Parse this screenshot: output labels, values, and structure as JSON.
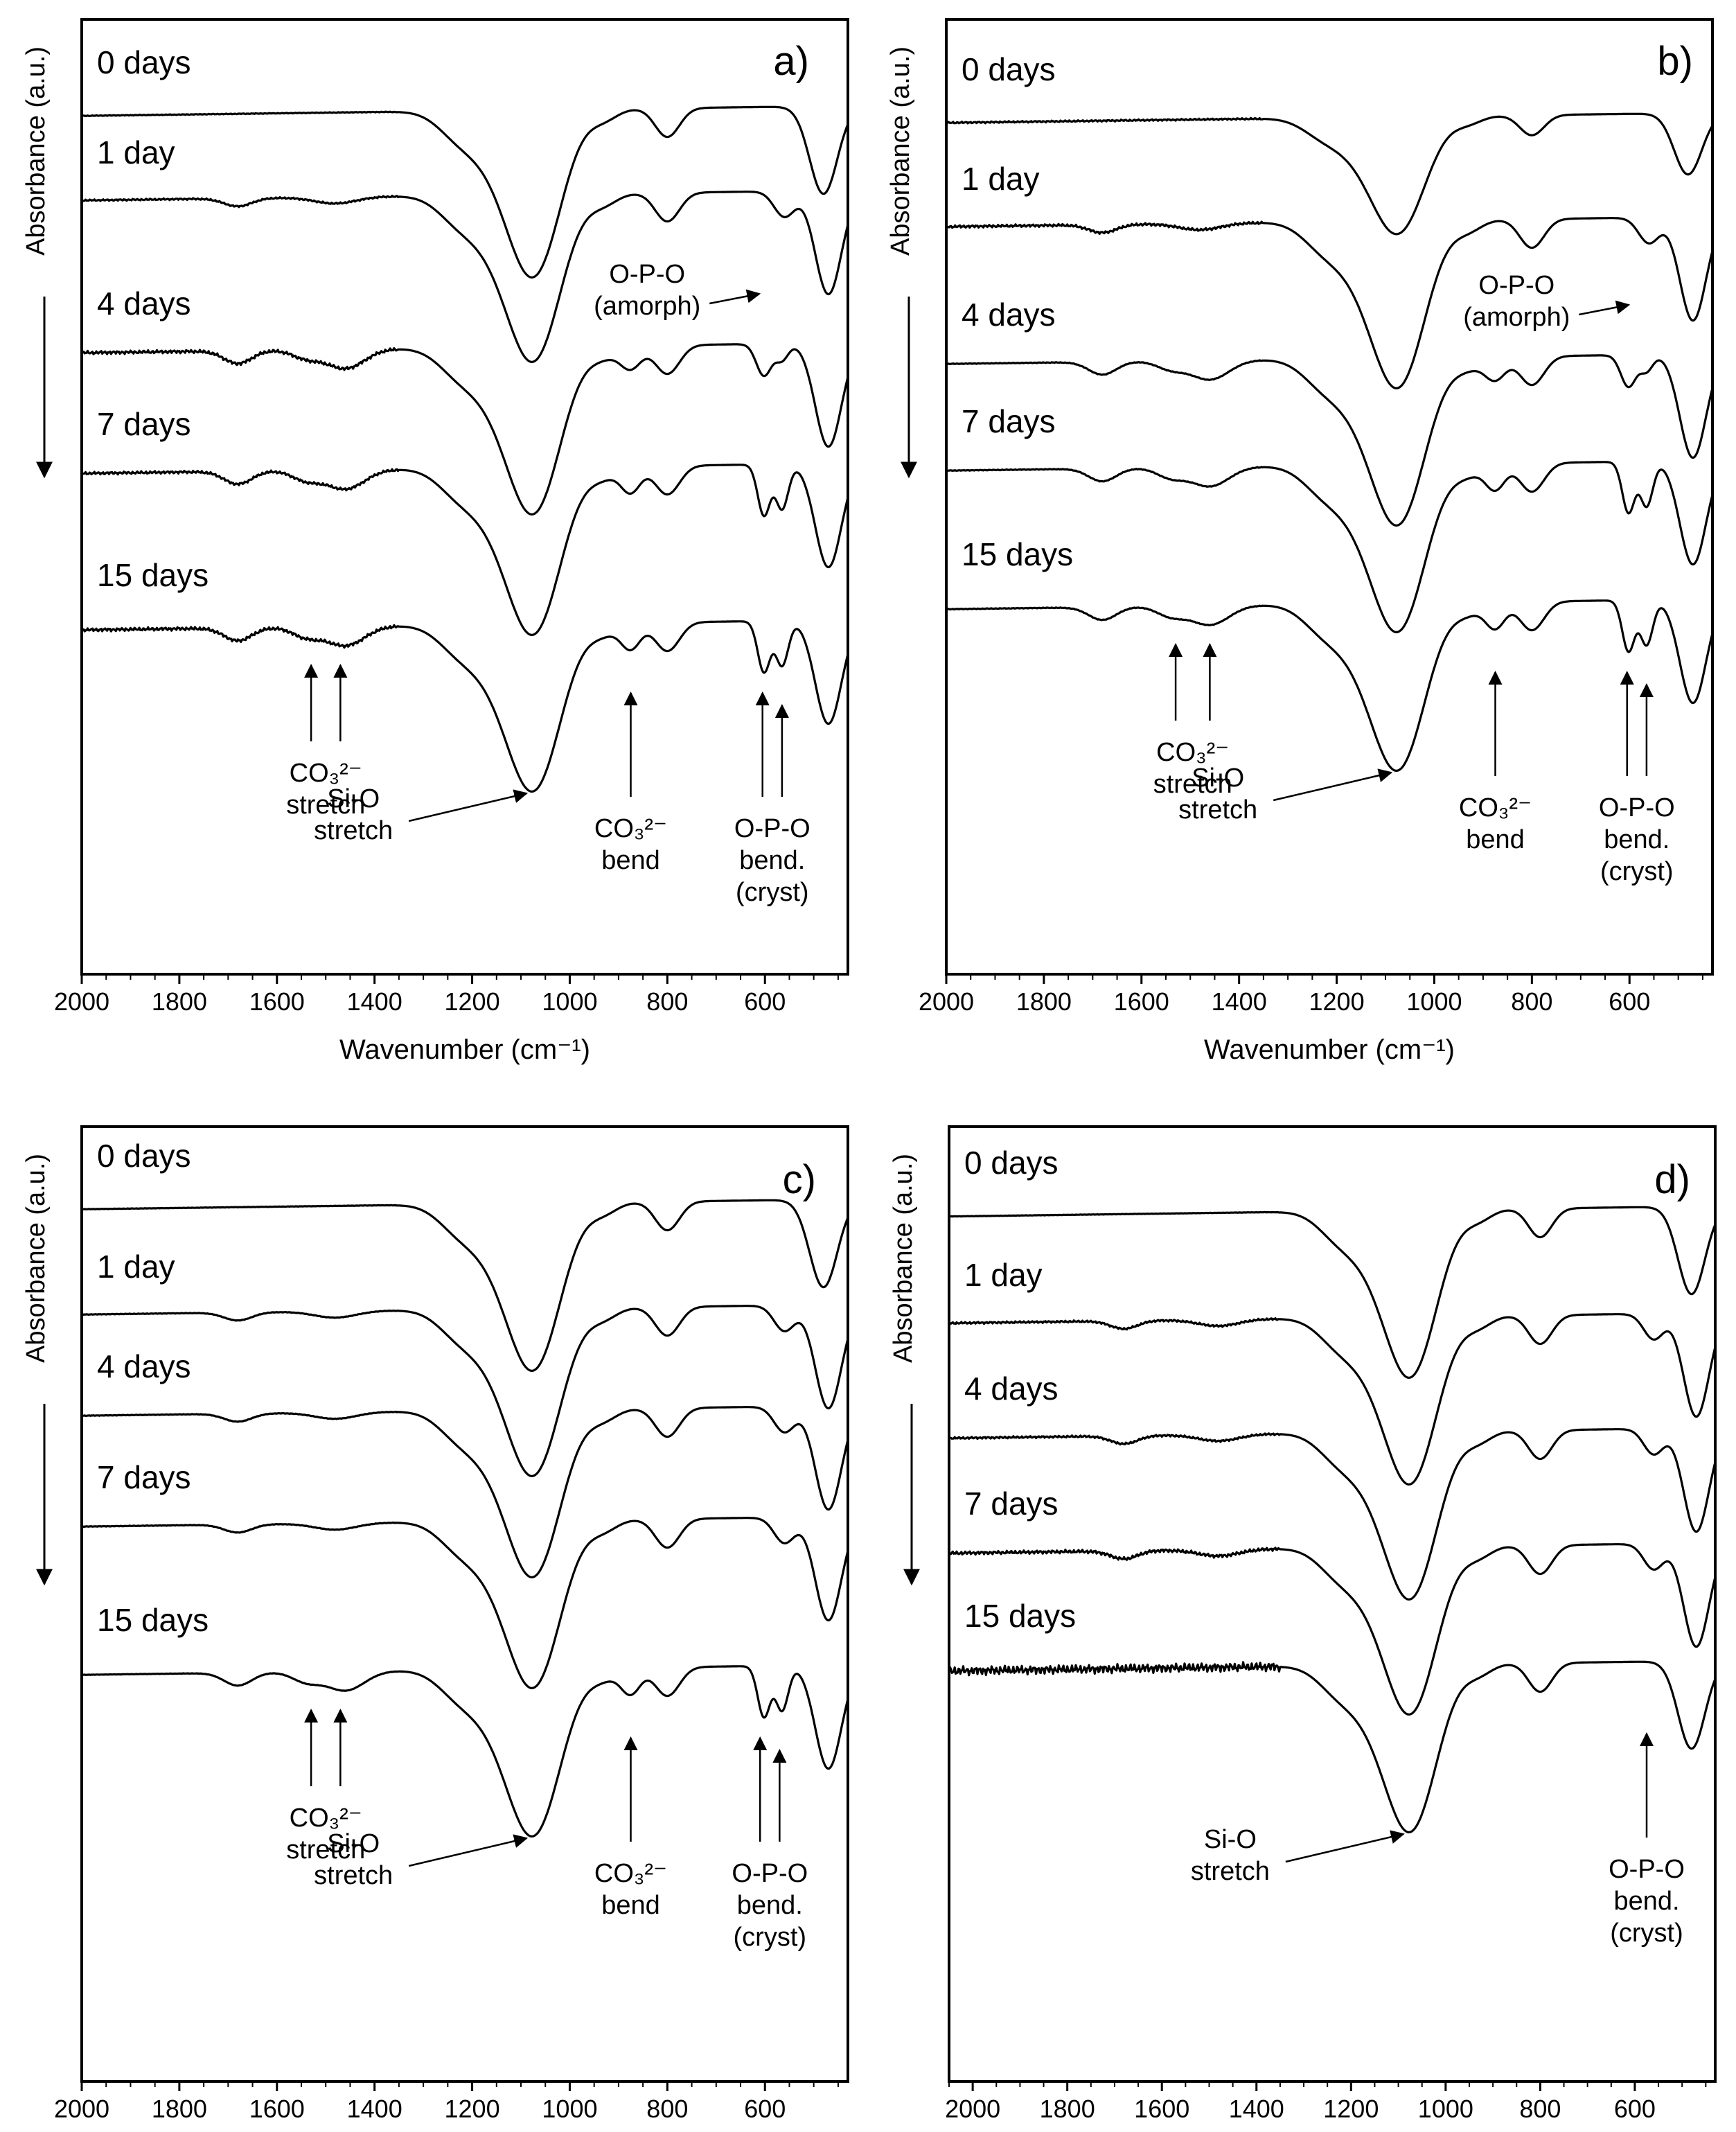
{
  "figure": {
    "y_axis_label": "Absorbance (a.u.)",
    "x_axis_label": "Wavenumber (cm⁻¹)"
  },
  "chart_data": [
    {
      "type": "line",
      "panel": "a)",
      "xlabel": "Wavenumber (cm⁻¹)",
      "ylabel": "Absorbance (a.u.)",
      "xlim": [
        2000,
        430
      ],
      "x_ticks": [
        2000,
        1800,
        1600,
        1400,
        1200,
        1000,
        800,
        600
      ],
      "y_direction_arrow": "down",
      "series": [
        {
          "name": "0 days",
          "profile": "amorphous",
          "noise": 0.2
        },
        {
          "name": "1 day",
          "profile": "early",
          "noise": 0.5
        },
        {
          "name": "4 days",
          "profile": "carbonate",
          "noise": 1.0
        },
        {
          "name": "7 days",
          "profile": "carbonate-cryst",
          "noise": 0.8
        },
        {
          "name": "15 days",
          "profile": "cryst",
          "noise": 1.0
        }
      ],
      "annotations": [
        {
          "id": "opo-amorph",
          "lines": [
            "O-P-O",
            "(amorph)"
          ],
          "x": 600
        },
        {
          "id": "co3-stretch",
          "lines": [
            "CO₃²⁻",
            "stretch"
          ],
          "x": [
            1530,
            1470
          ]
        },
        {
          "id": "co3-bend",
          "lines": [
            "CO₃²⁻",
            "bend"
          ],
          "x": 875
        },
        {
          "id": "sio-stretch",
          "lines": [
            "Si-O",
            "stretch"
          ],
          "x": 1060
        },
        {
          "id": "opo-cryst",
          "lines": [
            "O-P-O",
            "bend.",
            "(cryst)"
          ],
          "x": [
            605,
            565
          ]
        }
      ]
    },
    {
      "type": "line",
      "panel": "b)",
      "xlabel": "Wavenumber (cm⁻¹)",
      "ylabel": "Absorbance (a.u.)",
      "xlim": [
        2000,
        430
      ],
      "x_ticks": [
        2000,
        1800,
        1600,
        1400,
        1200,
        1000,
        800,
        600
      ],
      "y_direction_arrow": "down",
      "series": [
        {
          "name": "0 days",
          "profile": "flat",
          "noise": 0.5
        },
        {
          "name": "1 day",
          "profile": "early",
          "noise": 0.8
        },
        {
          "name": "4 days",
          "profile": "carbonate",
          "noise": 0.2
        },
        {
          "name": "7 days",
          "profile": "carbonate-cryst",
          "noise": 0.2
        },
        {
          "name": "15 days",
          "profile": "cryst",
          "noise": 0.2
        }
      ],
      "annotations": [
        {
          "id": "opo-amorph",
          "lines": [
            "O-P-O",
            "(amorph)"
          ],
          "x": 590
        },
        {
          "id": "co3-stretch",
          "lines": [
            "CO₃²⁻",
            "stretch"
          ],
          "x": [
            1530,
            1460
          ]
        },
        {
          "id": "co3-bend",
          "lines": [
            "CO₃²⁻",
            "bend"
          ],
          "x": 875
        },
        {
          "id": "sio-stretch",
          "lines": [
            "Si-O",
            "stretch"
          ],
          "x": 1060
        },
        {
          "id": "opo-cryst",
          "lines": [
            "O-P-O",
            "bend.",
            "(cryst)"
          ],
          "x": [
            605,
            565
          ]
        }
      ]
    },
    {
      "type": "line",
      "panel": "c)",
      "xlabel": "Wavenumber (cm⁻¹)",
      "ylabel": "Absorbance (a.u.)",
      "xlim": [
        2000,
        430
      ],
      "x_ticks": [
        2000,
        1800,
        1600,
        1400,
        1200,
        1000,
        800,
        600
      ],
      "y_direction_arrow": "down",
      "series": [
        {
          "name": "0 days",
          "profile": "amorphous",
          "noise": 0.1
        },
        {
          "name": "1 day",
          "profile": "early",
          "noise": 0.15
        },
        {
          "name": "4 days",
          "profile": "early",
          "noise": 0.15
        },
        {
          "name": "7 days",
          "profile": "early",
          "noise": 0.15
        },
        {
          "name": "15 days",
          "profile": "cryst",
          "noise": 0.1
        }
      ],
      "annotations": [
        {
          "id": "co3-stretch",
          "lines": [
            "CO₃²⁻",
            "stretch"
          ],
          "x": [
            1530,
            1470
          ]
        },
        {
          "id": "co3-bend",
          "lines": [
            "CO₃²⁻",
            "bend"
          ],
          "x": 875
        },
        {
          "id": "sio-stretch",
          "lines": [
            "Si-O",
            "stretch"
          ],
          "x": 1060
        },
        {
          "id": "opo-cryst",
          "lines": [
            "O-P-O",
            "bend.",
            "(cryst)"
          ],
          "x": [
            610,
            570
          ]
        }
      ]
    },
    {
      "type": "line",
      "panel": "d)",
      "xlabel": "Wavenumber (cm⁻¹)",
      "ylabel": "Absorbance (a.u.)",
      "xlim": [
        2050,
        430
      ],
      "x_ticks": [
        2000,
        1800,
        1600,
        1400,
        1200,
        1000,
        800,
        600
      ],
      "y_direction_arrow": "down",
      "series": [
        {
          "name": "0 days",
          "profile": "amorphous",
          "noise": 0.1
        },
        {
          "name": "1 day",
          "profile": "early",
          "noise": 0.6
        },
        {
          "name": "4 days",
          "profile": "early",
          "noise": 0.6
        },
        {
          "name": "7 days",
          "profile": "early",
          "noise": 1.0
        },
        {
          "name": "15 days",
          "profile": "amorphous",
          "noise": 2.6
        }
      ],
      "annotations": [
        {
          "id": "sio-stretch",
          "lines": [
            "Si-O",
            "stretch"
          ],
          "x": 1060
        },
        {
          "id": "opo-cryst",
          "lines": [
            "O-P-O",
            "bend.",
            "(cryst)"
          ],
          "x": 575
        }
      ]
    }
  ]
}
